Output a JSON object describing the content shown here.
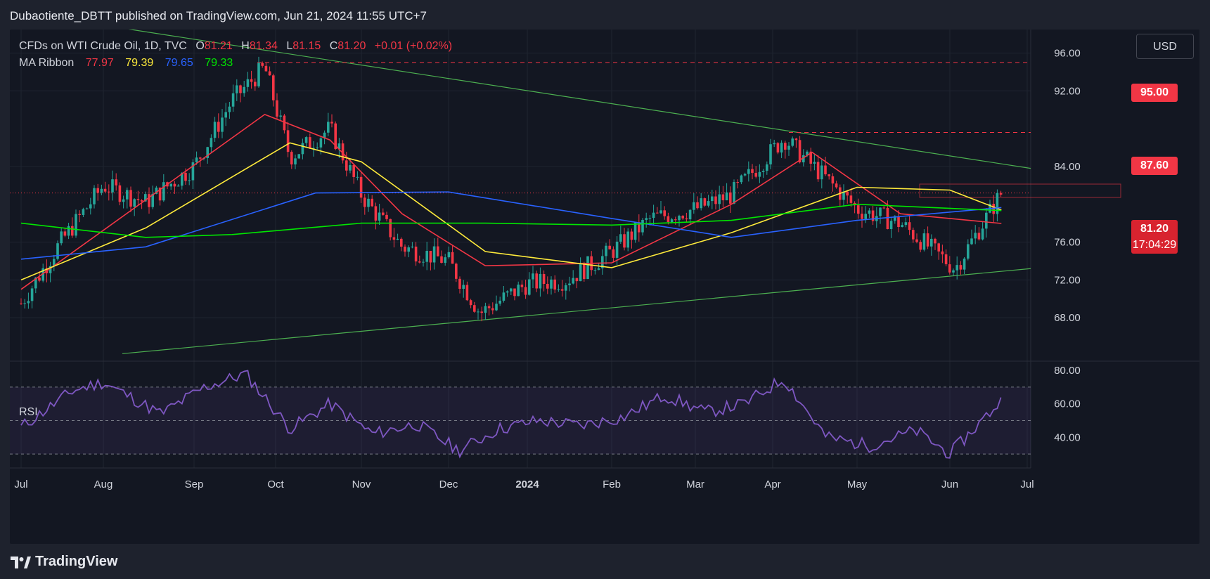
{
  "header": {
    "published_line": "Dubaotiente_DBTT published on TradingView.com, Jun 21, 2024 11:55 UTC+7"
  },
  "legend": {
    "symbol": "CFDs on WTI Crude Oil, 1D, TVC",
    "open_label": "O",
    "open": "81.21",
    "high_label": "H",
    "high": "81.34",
    "low_label": "L",
    "low": "81.15",
    "close_label": "C",
    "close": "81.20",
    "change": "+0.01 (+0.02%)",
    "ma_label": "MA Ribbon",
    "ma_values": [
      "77.97",
      "79.39",
      "79.65",
      "79.33"
    ]
  },
  "currency_button": "USD",
  "rsi_label": "RSI",
  "price_labels": {
    "level_95": "95.00",
    "level_87": "87.60",
    "last_price": "81.20",
    "countdown": "17:04:29"
  },
  "footer": {
    "brand": "TradingView"
  },
  "colors": {
    "up": "#26a69a",
    "down": "#f23645",
    "ma1": "#f23645",
    "ma2": "#ffeb3b",
    "ma3": "#2962ff",
    "ma4": "#00e600",
    "trendline": "#4caf50",
    "rsi": "#7e57c2"
  },
  "chart_data": [
    {
      "type": "candlestick",
      "y_axis_ticks": [
        68,
        72,
        76,
        84,
        92,
        96
      ],
      "x_axis_ticks": [
        "Jul",
        "Aug",
        "Sep",
        "Oct",
        "Nov",
        "Dec",
        "2024",
        "Feb",
        "Mar",
        "Apr",
        "May",
        "Jun",
        "Jul"
      ],
      "ylim": [
        64.0,
        97.0
      ],
      "last_price": 81.2,
      "horizontal_levels": [
        95.0,
        87.6
      ],
      "series": [
        {
          "name": "Close",
          "x": [
            "Jul 01",
            "Jul 15",
            "Aug 01",
            "Aug 15",
            "Sep 01",
            "Sep 15",
            "Sep 27",
            "Oct 06",
            "Oct 20",
            "Nov 01",
            "Nov 15",
            "Dec 01",
            "Dec 13",
            "Jan 01",
            "Jan 15",
            "Feb 01",
            "Feb 15",
            "Mar 01",
            "Mar 15",
            "Apr 05",
            "Apr 19",
            "May 01",
            "May 15",
            "Jun 03",
            "Jun 21"
          ],
          "values": [
            69.5,
            75.8,
            82.0,
            80.2,
            84.0,
            91.0,
            94.5,
            85.0,
            88.0,
            81.0,
            75.5,
            74.0,
            68.5,
            71.6,
            72.0,
            75.0,
            78.5,
            79.5,
            81.0,
            87.0,
            83.0,
            79.5,
            78.0,
            73.2,
            81.2
          ]
        },
        {
          "name": "MA Ribbon 1",
          "x": [
            "Jul 01",
            "Sep 27",
            "Oct 20",
            "Nov 15",
            "Dec 15",
            "Feb 01",
            "Mar 15",
            "Apr 15",
            "May 15",
            "Jun 21"
          ],
          "values": [
            71.0,
            89.5,
            86.8,
            79.0,
            73.5,
            73.8,
            80.0,
            85.5,
            79.0,
            77.97
          ]
        },
        {
          "name": "MA Ribbon 2",
          "x": [
            "Jul 01",
            "Aug 15",
            "Oct 06",
            "Nov 01",
            "Dec 15",
            "Feb 01",
            "Mar 15",
            "May 01",
            "Jun 01",
            "Jun 21"
          ],
          "values": [
            72.0,
            77.5,
            86.5,
            84.5,
            75.0,
            73.3,
            77.0,
            81.8,
            81.5,
            79.39
          ]
        },
        {
          "name": "MA Ribbon 3",
          "x": [
            "Jul 01",
            "Aug 15",
            "Oct 15",
            "Dec 01",
            "Feb 01",
            "Mar 15",
            "May 01",
            "Jun 21"
          ],
          "values": [
            74.2,
            75.5,
            81.2,
            81.3,
            78.5,
            76.5,
            78.3,
            79.65
          ]
        },
        {
          "name": "MA Ribbon 4",
          "x": [
            "Jul 01",
            "Aug 15",
            "Sep 15",
            "Nov 01",
            "Dec 15",
            "Feb 01",
            "Mar 15",
            "May 01",
            "Jun 21"
          ],
          "values": [
            78.0,
            76.5,
            76.8,
            78.0,
            78.0,
            77.8,
            78.3,
            80.0,
            79.33
          ]
        }
      ]
    },
    {
      "type": "line",
      "ylim": [
        25,
        83
      ],
      "y_axis_ticks": [
        40,
        60,
        80
      ],
      "band": [
        30,
        70
      ],
      "series": [
        {
          "name": "RSI",
          "x": [
            "Jul 01",
            "Jul 20",
            "Aug 01",
            "Aug 20",
            "Sep 05",
            "Sep 20",
            "Oct 06",
            "Oct 20",
            "Nov 05",
            "Nov 20",
            "Dec 05",
            "Dec 20",
            "Jan 05",
            "Jan 20",
            "Feb 05",
            "Feb 20",
            "Mar 05",
            "Mar 20",
            "Apr 05",
            "Apr 20",
            "May 05",
            "May 20",
            "Jun 01",
            "Jun 21"
          ],
          "values": [
            46,
            68,
            73,
            54,
            70,
            78,
            45,
            60,
            42,
            48,
            32,
            45,
            50,
            47,
            52,
            65,
            55,
            60,
            75,
            40,
            35,
            44,
            30,
            62
          ]
        }
      ]
    }
  ]
}
